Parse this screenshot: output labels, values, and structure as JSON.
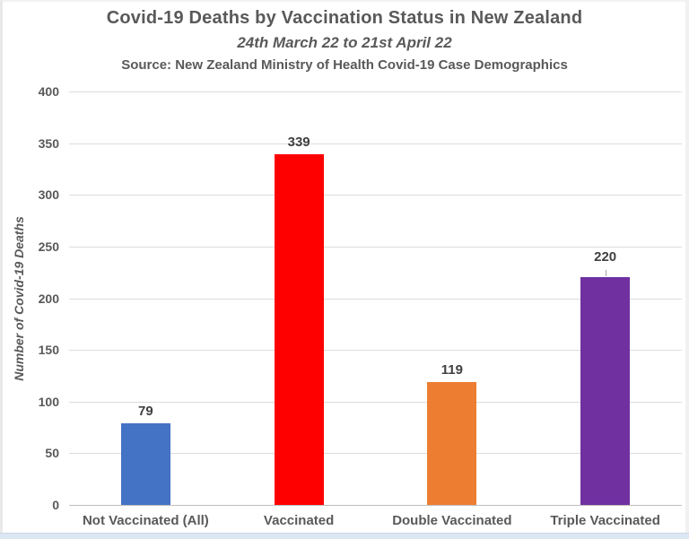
{
  "header": {
    "title": "Covid-19 Deaths by Vaccination Status in New Zealand",
    "subtitle": "24th March 22 to 21st April 22",
    "source": "Source: New Zealand Ministry of Health Covid-19 Case Demographics"
  },
  "chart_data": {
    "type": "bar",
    "title": "Covid-19 Deaths by Vaccination Status in New Zealand",
    "subtitle": "24th March 22 to 21st April 22",
    "source_note": "Source: New Zealand Ministry of Health Covid-19 Case Demographics",
    "categories": [
      "Not Vaccinated (All)",
      "Vaccinated",
      "Double Vaccinated",
      "Triple Vaccinated"
    ],
    "values": [
      79,
      339,
      119,
      220
    ],
    "bar_colors": [
      "#4472C4",
      "#FF0000",
      "#ED7D31",
      "#7030A0"
    ],
    "data_labels": [
      79,
      339,
      119,
      220
    ],
    "leader_line_indices": [
      3
    ],
    "xlabel": "",
    "ylabel": "Number of Covid-19 Deaths",
    "ylim": [
      0,
      400
    ],
    "ytick_step": 50,
    "yticks": [
      0,
      50,
      100,
      150,
      200,
      250,
      300,
      350,
      400
    ],
    "grid": true,
    "legend": false,
    "colors": {
      "text_primary": "#595959",
      "data_label": "#404040",
      "gridline": "#dcdcdc",
      "axis_line": "#bfbfbf",
      "background": "#ffffff",
      "bottom_strip": "#dce7f3"
    }
  }
}
